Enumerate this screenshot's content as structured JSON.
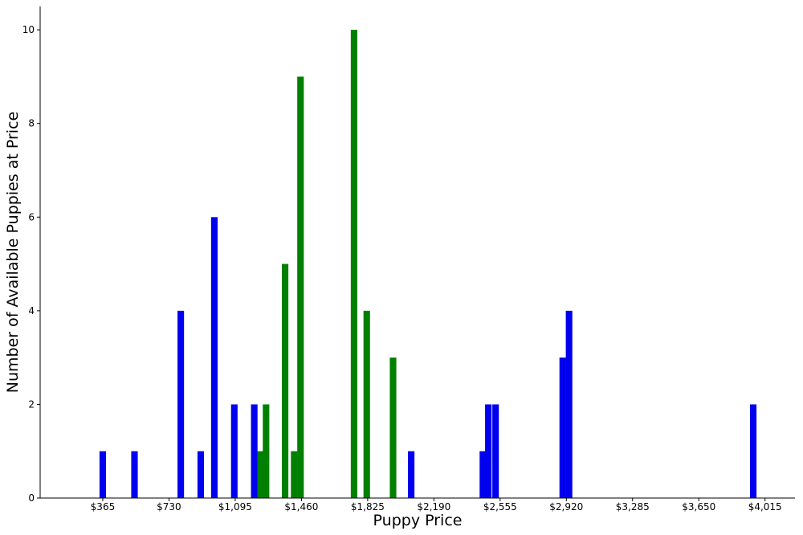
{
  "chart_data": {
    "type": "bar",
    "title": "",
    "xlabel": "Puppy Price",
    "ylabel": "Number of Available Puppies at Price",
    "xlim": [
      20,
      4180
    ],
    "ylim": [
      0,
      10.5
    ],
    "grid": false,
    "legend": "none",
    "x_ticks": [
      {
        "value": 365,
        "label": "$365"
      },
      {
        "value": 730,
        "label": "$730"
      },
      {
        "value": 1095,
        "label": "$1,095"
      },
      {
        "value": 1460,
        "label": "$1,460"
      },
      {
        "value": 1825,
        "label": "$1,825"
      },
      {
        "value": 2190,
        "label": "$2,190"
      },
      {
        "value": 2555,
        "label": "$2,555"
      },
      {
        "value": 2920,
        "label": "$2,920"
      },
      {
        "value": 3285,
        "label": "$3,285"
      },
      {
        "value": 3650,
        "label": "$3,650"
      },
      {
        "value": 4015,
        "label": "$4,015"
      }
    ],
    "y_ticks": [
      {
        "value": 0,
        "label": "0"
      },
      {
        "value": 2,
        "label": "2"
      },
      {
        "value": 4,
        "label": "4"
      },
      {
        "value": 6,
        "label": "6"
      },
      {
        "value": 8,
        "label": "8"
      },
      {
        "value": 10,
        "label": "10"
      }
    ],
    "bar_width": 36,
    "series": [
      {
        "color": "#0000ee",
        "points": [
          {
            "x": 365,
            "y": 1
          },
          {
            "x": 540,
            "y": 1
          },
          {
            "x": 795,
            "y": 4
          },
          {
            "x": 905,
            "y": 1
          },
          {
            "x": 980,
            "y": 6
          },
          {
            "x": 1090,
            "y": 2
          },
          {
            "x": 1200,
            "y": 2
          },
          {
            "x": 2065,
            "y": 1
          },
          {
            "x": 2460,
            "y": 1
          },
          {
            "x": 2490,
            "y": 2
          },
          {
            "x": 2530,
            "y": 2
          },
          {
            "x": 2900,
            "y": 3
          },
          {
            "x": 2935,
            "y": 4
          },
          {
            "x": 3950,
            "y": 2
          }
        ]
      },
      {
        "color": "#008000",
        "points": [
          {
            "x": 1235,
            "y": 1
          },
          {
            "x": 1265,
            "y": 2
          },
          {
            "x": 1370,
            "y": 5
          },
          {
            "x": 1420,
            "y": 1
          },
          {
            "x": 1455,
            "y": 9
          },
          {
            "x": 1750,
            "y": 10
          },
          {
            "x": 1820,
            "y": 4
          },
          {
            "x": 1965,
            "y": 3
          }
        ]
      }
    ]
  }
}
